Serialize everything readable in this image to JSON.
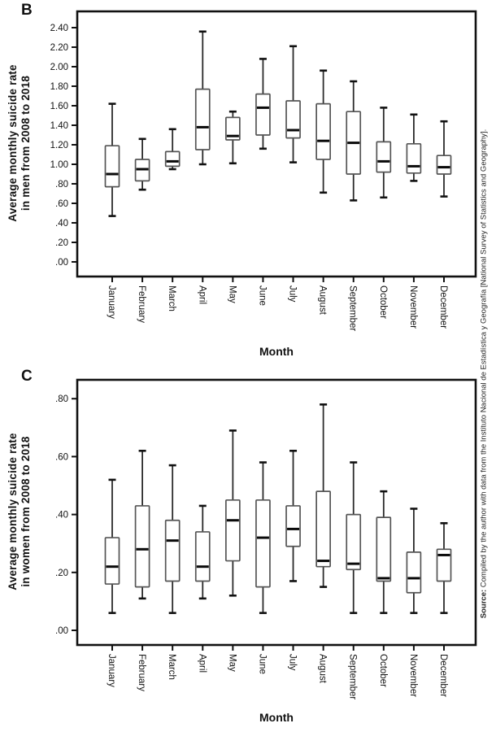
{
  "figure": {
    "source_note_bold": "Source:",
    "source_note_rest": " Compiled by the author with data from the Instituto Nacional de Estadística y Geografía [National Survey of Statistics and Geography]."
  },
  "chart_data": [
    {
      "type": "boxplot",
      "panel_label": "B",
      "ylabel": "Average monthly suicide rate in men from 2008 to 2018",
      "ylabel_lines": [
        "Average monthly suicide rate",
        "in men from 2008 to 2018"
      ],
      "xlabel": "Month",
      "ylim": [
        0.0,
        2.5
      ],
      "grid": false,
      "y_ticks": [
        0.0,
        0.2,
        0.4,
        0.6,
        0.8,
        1.0,
        1.2,
        1.4,
        1.6,
        1.8,
        2.0,
        2.2,
        2.4
      ],
      "y_tick_labels": [
        ".00",
        ".20",
        ".40",
        ".60",
        ".80",
        "1.00",
        "1.20",
        "1.40",
        "1.60",
        "1.80",
        "2.00",
        "2.20",
        "2.40"
      ],
      "categories": [
        "January",
        "February",
        "March",
        "April",
        "May",
        "June",
        "July",
        "August",
        "September",
        "October",
        "November",
        "December"
      ],
      "series": [
        {
          "category": "January",
          "min": 0.47,
          "q1": 0.77,
          "median": 0.9,
          "q3": 1.19,
          "max": 1.62
        },
        {
          "category": "February",
          "min": 0.74,
          "q1": 0.83,
          "median": 0.95,
          "q3": 1.05,
          "max": 1.26
        },
        {
          "category": "March",
          "min": 0.95,
          "q1": 0.98,
          "median": 1.03,
          "q3": 1.13,
          "max": 1.36
        },
        {
          "category": "April",
          "min": 1.0,
          "q1": 1.15,
          "median": 1.38,
          "q3": 1.77,
          "max": 2.36
        },
        {
          "category": "May",
          "min": 1.01,
          "q1": 1.25,
          "median": 1.29,
          "q3": 1.48,
          "max": 1.54
        },
        {
          "category": "June",
          "min": 1.16,
          "q1": 1.3,
          "median": 1.58,
          "q3": 1.72,
          "max": 2.08
        },
        {
          "category": "July",
          "min": 1.02,
          "q1": 1.27,
          "median": 1.35,
          "q3": 1.65,
          "max": 2.21
        },
        {
          "category": "August",
          "min": 0.71,
          "q1": 1.05,
          "median": 1.24,
          "q3": 1.62,
          "max": 1.96
        },
        {
          "category": "September",
          "min": 0.63,
          "q1": 0.9,
          "median": 1.22,
          "q3": 1.54,
          "max": 1.85
        },
        {
          "category": "October",
          "min": 0.66,
          "q1": 0.92,
          "median": 1.03,
          "q3": 1.23,
          "max": 1.58
        },
        {
          "category": "November",
          "min": 0.83,
          "q1": 0.91,
          "median": 0.98,
          "q3": 1.21,
          "max": 1.51
        },
        {
          "category": "December",
          "min": 0.67,
          "q1": 0.9,
          "median": 0.97,
          "q3": 1.09,
          "max": 1.44
        }
      ]
    },
    {
      "type": "boxplot",
      "panel_label": "C",
      "ylabel": "Average monthly suicide rate in women from 2008 to 2018",
      "ylabel_lines": [
        "Average monthly suicide rate",
        "in women from 2008 to 2018"
      ],
      "xlabel": "Month",
      "ylim": [
        0.0,
        0.87
      ],
      "grid": false,
      "y_ticks": [
        0.0,
        0.2,
        0.4,
        0.6,
        0.8
      ],
      "y_tick_labels": [
        ".00",
        ".20",
        ".40",
        ".60",
        ".80"
      ],
      "categories": [
        "January",
        "February",
        "March",
        "April",
        "May",
        "June",
        "July",
        "August",
        "September",
        "October",
        "November",
        "December"
      ],
      "series": [
        {
          "category": "January",
          "min": 0.06,
          "q1": 0.16,
          "median": 0.22,
          "q3": 0.32,
          "max": 0.52
        },
        {
          "category": "February",
          "min": 0.11,
          "q1": 0.15,
          "median": 0.28,
          "q3": 0.43,
          "max": 0.62
        },
        {
          "category": "March",
          "min": 0.06,
          "q1": 0.17,
          "median": 0.31,
          "q3": 0.38,
          "max": 0.57
        },
        {
          "category": "April",
          "min": 0.11,
          "q1": 0.17,
          "median": 0.22,
          "q3": 0.34,
          "max": 0.43
        },
        {
          "category": "May",
          "min": 0.12,
          "q1": 0.24,
          "median": 0.38,
          "q3": 0.45,
          "max": 0.69
        },
        {
          "category": "June",
          "min": 0.06,
          "q1": 0.15,
          "median": 0.32,
          "q3": 0.45,
          "max": 0.58
        },
        {
          "category": "July",
          "min": 0.17,
          "q1": 0.29,
          "median": 0.35,
          "q3": 0.43,
          "max": 0.62
        },
        {
          "category": "August",
          "min": 0.15,
          "q1": 0.22,
          "median": 0.24,
          "q3": 0.48,
          "max": 0.78
        },
        {
          "category": "September",
          "min": 0.06,
          "q1": 0.21,
          "median": 0.23,
          "q3": 0.4,
          "max": 0.58
        },
        {
          "category": "October",
          "min": 0.06,
          "q1": 0.17,
          "median": 0.18,
          "q3": 0.39,
          "max": 0.48
        },
        {
          "category": "November",
          "min": 0.06,
          "q1": 0.13,
          "median": 0.18,
          "q3": 0.27,
          "max": 0.42
        },
        {
          "category": "December",
          "min": 0.06,
          "q1": 0.17,
          "median": 0.26,
          "q3": 0.28,
          "max": 0.37
        }
      ]
    }
  ]
}
